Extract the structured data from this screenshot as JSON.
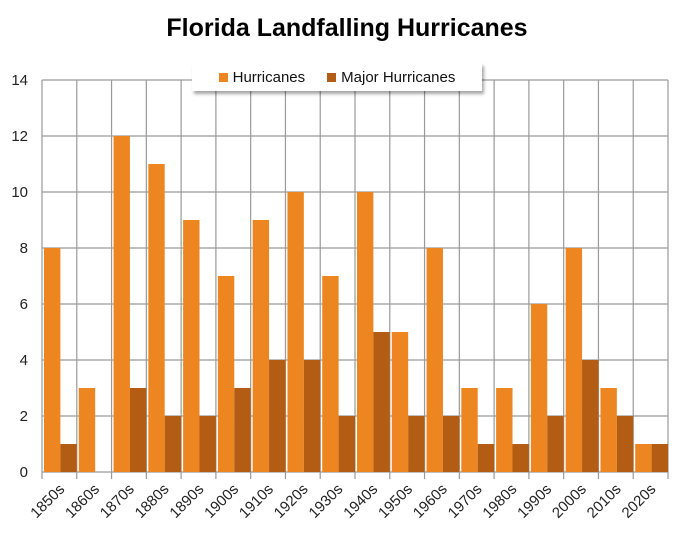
{
  "chart_data": {
    "type": "bar",
    "title": "Florida Landfalling Hurricanes",
    "xlabel": "",
    "ylabel": "",
    "ylim": [
      0,
      14
    ],
    "yticks": [
      0,
      2,
      4,
      6,
      8,
      10,
      12,
      14
    ],
    "grid": true,
    "legend_position": "top-center",
    "categories": [
      "1850s",
      "1860s",
      "1870s",
      "1880s",
      "1890s",
      "1900s",
      "1910s",
      "1920s",
      "1930s",
      "1940s",
      "1950s",
      "1960s",
      "1970s",
      "1980s",
      "1990s",
      "2000s",
      "2010s",
      "2020s"
    ],
    "series": [
      {
        "name": "Hurricanes",
        "color": "#ed8620",
        "values": [
          8,
          3,
          12,
          11,
          9,
          7,
          9,
          10,
          7,
          10,
          5,
          8,
          3,
          3,
          6,
          8,
          3,
          1
        ]
      },
      {
        "name": "Major Hurricanes",
        "color": "#b35c14",
        "values": [
          1,
          0,
          3,
          2,
          2,
          3,
          4,
          4,
          2,
          5,
          2,
          2,
          1,
          1,
          2,
          4,
          2,
          1
        ]
      }
    ]
  }
}
